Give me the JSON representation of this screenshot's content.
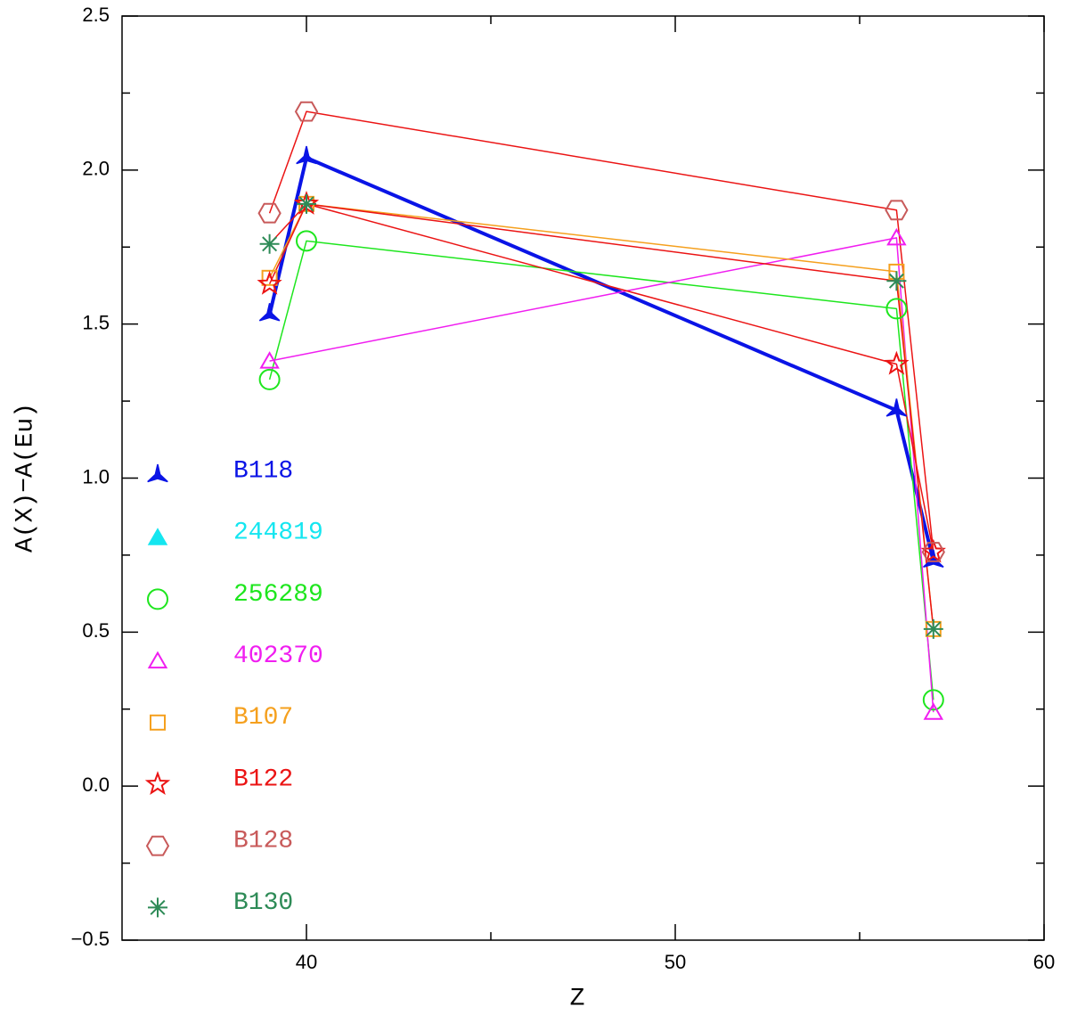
{
  "chart_data": {
    "type": "line",
    "xlabel": "Z",
    "ylabel": "A(X)−A(Eu)",
    "xlim": [
      35,
      60
    ],
    "ylim": [
      -0.5,
      2.5
    ],
    "xticks": [
      40,
      50,
      60
    ],
    "yticks": [
      {
        "value": -0.5,
        "label": "−0.5"
      },
      {
        "value": 0,
        "label": "0.0"
      },
      0.5,
      {
        "value": 1,
        "label": "1.0"
      },
      1.5,
      {
        "value": 2,
        "label": "2.0"
      },
      2.5
    ],
    "xminorticks": [
      45,
      55
    ],
    "yminorticks": [
      -0.25,
      0.25,
      0.75,
      1.25,
      1.75,
      2.25
    ],
    "legend": "lower left",
    "series": [
      {
        "name": "B118",
        "color": "#0a14e6",
        "line_color": "#0a14e6",
        "marker": "tri3",
        "line_width": 4,
        "x": [
          39,
          40,
          56,
          57
        ],
        "values": [
          1.53,
          2.04,
          1.22,
          0.73
        ]
      },
      {
        "name": "244819",
        "color": "#14e6f0",
        "line_color": "#14e6f0",
        "marker": "triangle_filled",
        "line_width": 1.5,
        "x": [],
        "values": []
      },
      {
        "name": "256289",
        "color": "#1ee61e",
        "line_color": "#1ee61e",
        "marker": "circle",
        "line_width": 1.5,
        "x": [
          39,
          40,
          56,
          57
        ],
        "values": [
          1.32,
          1.77,
          1.55,
          0.28
        ]
      },
      {
        "name": "402370",
        "color": "#f01ef0",
        "line_color": "#f01ef0",
        "marker": "triangle",
        "line_width": 1.5,
        "x": [
          39,
          56,
          57
        ],
        "values": [
          1.38,
          1.78,
          0.24
        ]
      },
      {
        "name": "B107",
        "color": "#f5a01e",
        "line_color": "#f5a01e",
        "marker": "square",
        "line_width": 1.5,
        "x": [
          39,
          40,
          56,
          57
        ],
        "values": [
          1.65,
          1.89,
          1.67,
          0.51
        ]
      },
      {
        "name": "B122",
        "color": "#eb1414",
        "line_color": "#eb1414",
        "marker": "star",
        "line_width": 1.5,
        "x": [
          39,
          40,
          56,
          57
        ],
        "values": [
          1.63,
          1.89,
          1.37,
          0.76
        ]
      },
      {
        "name": "B128",
        "color": "#c85a5a",
        "line_color": "#eb1414",
        "marker": "hexagon",
        "line_width": 1.5,
        "x": [
          39,
          40,
          56,
          57
        ],
        "values": [
          1.86,
          2.19,
          1.87,
          0.76
        ]
      },
      {
        "name": "B130",
        "color": "#2e8b57",
        "line_color": "#eb1414",
        "marker": "asterisk",
        "line_width": 1.5,
        "x": [
          39,
          40,
          56,
          57
        ],
        "values": [
          1.76,
          1.89,
          1.64,
          0.51
        ]
      }
    ]
  }
}
